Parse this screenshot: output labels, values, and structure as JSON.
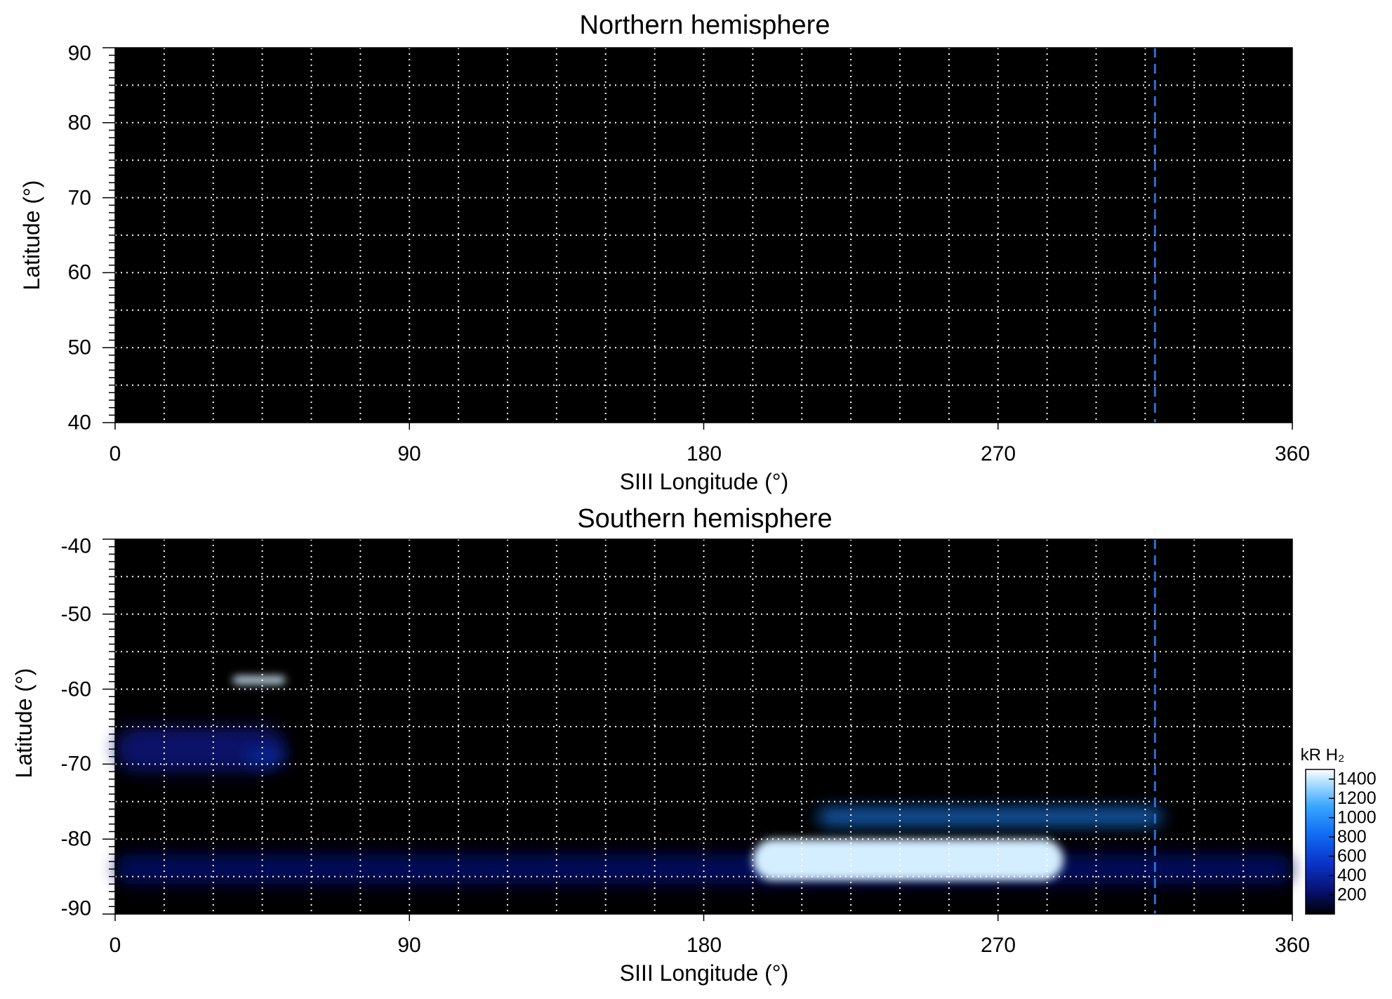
{
  "chart_data": [
    {
      "type": "heatmap",
      "title": "Northern hemisphere",
      "xlabel": "SIII Longitude (°)",
      "ylabel": "Latitude (°)",
      "xlim": [
        0,
        360
      ],
      "ylim": [
        40,
        90
      ],
      "xticks": [
        0,
        90,
        180,
        270,
        360
      ],
      "yticks": [
        40,
        50,
        60,
        70,
        80,
        90
      ],
      "grid": true,
      "grid_x_step": 15,
      "grid_y_step": 5,
      "marker_longitude": 318,
      "marker_color": "#2a6fd6",
      "emission_regions": []
    },
    {
      "type": "heatmap",
      "title": "Southern hemisphere",
      "xlabel": "SIII Longitude (°)",
      "ylabel": "Latitude (°)",
      "xlim": [
        0,
        360
      ],
      "ylim": [
        -90,
        -40
      ],
      "xticks": [
        0,
        90,
        180,
        270,
        360
      ],
      "yticks": [
        -90,
        -80,
        -70,
        -60,
        -50,
        -40
      ],
      "grid": true,
      "grid_x_step": 15,
      "grid_y_step": 5,
      "marker_longitude": 318,
      "marker_color": "#2a6fd6",
      "emission_regions": [
        {
          "lon_min": 0,
          "lon_max": 52,
          "lat_min": -71,
          "lat_max": -65,
          "level": 250
        },
        {
          "lon_min": 36,
          "lon_max": 52,
          "lat_min": -59.3,
          "lat_max": -58.3,
          "level": 1400
        },
        {
          "lon_min": 40,
          "lon_max": 52,
          "lat_min": -69.5,
          "lat_max": -68.5,
          "level": 600
        },
        {
          "lon_min": 0,
          "lon_max": 360,
          "lat_min": -86,
          "lat_max": -82,
          "level": 200
        },
        {
          "lon_min": 215,
          "lon_max": 320,
          "lat_min": -78,
          "lat_max": -76,
          "level": 900
        },
        {
          "lon_min": 195,
          "lon_max": 290,
          "lat_min": -85.5,
          "lat_max": -80,
          "level": 1400
        }
      ],
      "colorbar": {
        "label": "kR H₂",
        "ticks": [
          200,
          400,
          600,
          800,
          1000,
          1200,
          1400
        ],
        "range": [
          0,
          1500
        ]
      }
    }
  ]
}
